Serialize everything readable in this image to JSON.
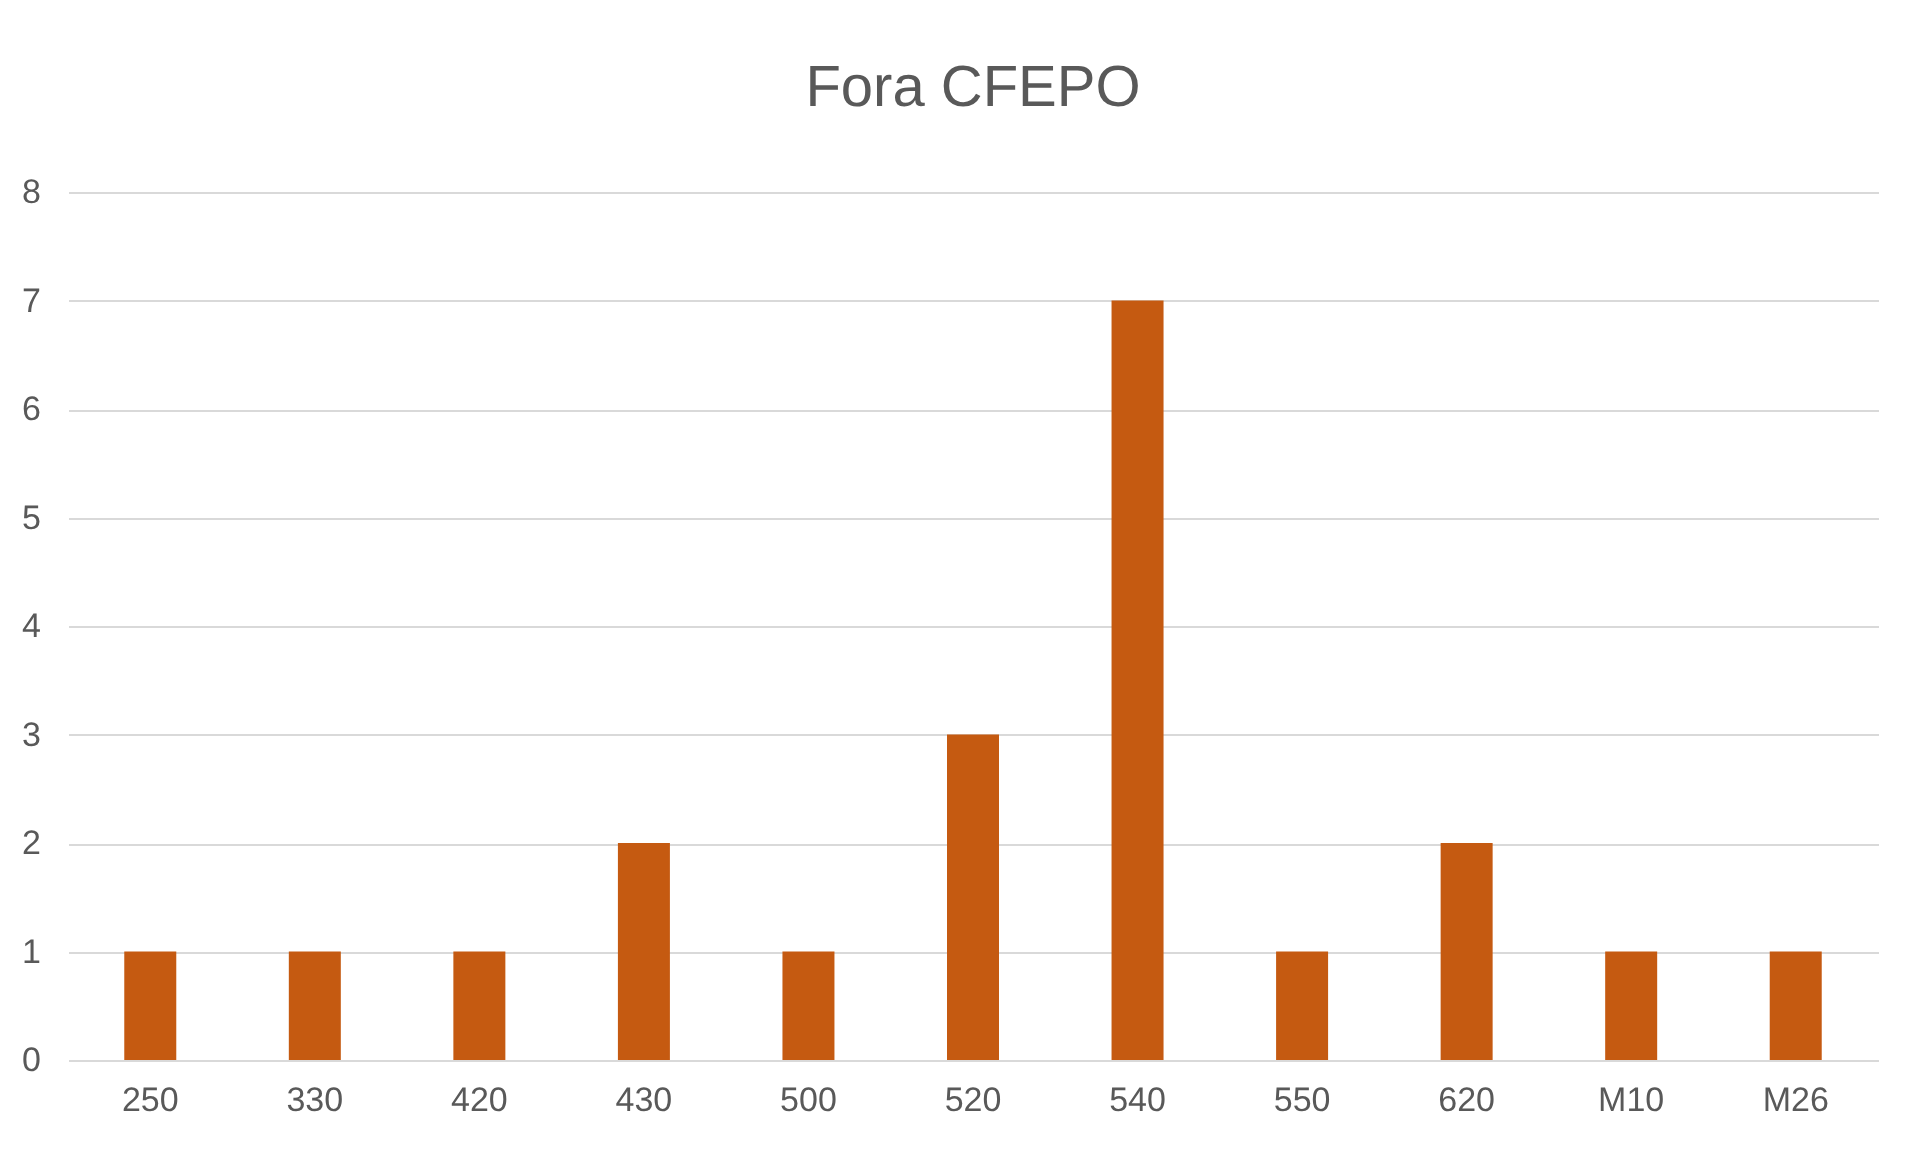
{
  "chart_data": {
    "type": "bar",
    "title": "Fora CFEPO",
    "categories": [
      "250",
      "330",
      "420",
      "430",
      "500",
      "520",
      "540",
      "550",
      "620",
      "M10",
      "M26"
    ],
    "values": [
      1,
      1,
      1,
      2,
      1,
      3,
      7,
      1,
      2,
      1,
      1
    ],
    "color": "#c55a11",
    "ylim": [
      0,
      8
    ],
    "yticks": [
      0,
      1,
      2,
      3,
      4,
      5,
      6,
      7,
      8
    ],
    "grid": "y"
  }
}
